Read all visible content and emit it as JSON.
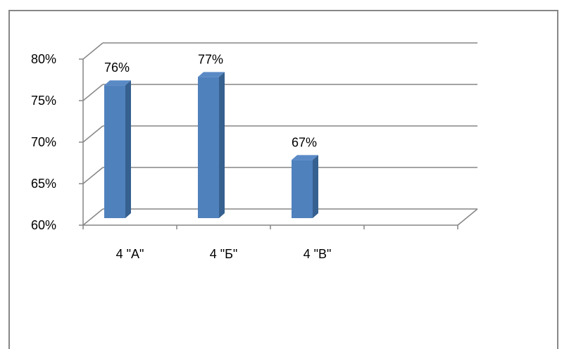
{
  "chart_data": {
    "type": "bar",
    "style": "3d-column",
    "categories": [
      "4 \"А\"",
      "4 \"Б\"",
      "4 \"В\""
    ],
    "values": [
      76,
      77,
      67
    ],
    "data_labels": [
      "76%",
      "77%",
      "67%"
    ],
    "ylim": [
      60,
      80
    ],
    "yticks": [
      60,
      65,
      70,
      75,
      80
    ],
    "ytick_labels": [
      "60%",
      "65%",
      "70%",
      "75%",
      "80%"
    ],
    "title": "",
    "xlabel": "",
    "ylabel": "",
    "grid": true,
    "legend": "none"
  },
  "colors": {
    "bar_front": "#4F81BD",
    "bar_side": "#36608F",
    "bar_top": "#5A8AC6",
    "grid": "#868686",
    "frame": "#878787"
  }
}
